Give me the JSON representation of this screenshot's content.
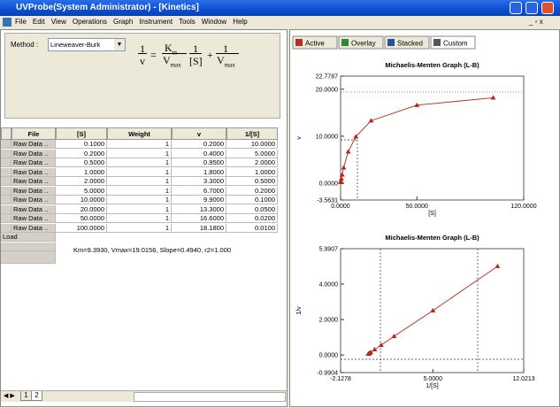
{
  "window": {
    "title": "UVProbe(System Administrator) - [Kinetics]",
    "menu": [
      "File",
      "Edit",
      "View",
      "Operations",
      "Graph",
      "Instrument",
      "Tools",
      "Window",
      "Help"
    ]
  },
  "method": {
    "label": "Method :",
    "selected": "Lineweaver-Burk"
  },
  "formula": {
    "one": "1",
    "v": "v",
    "K": "K",
    "m": "m",
    "V": "V",
    "max": "max",
    "S": "[S]",
    "plus": "+",
    "eq": "="
  },
  "table": {
    "headers": [
      "File",
      "[S]",
      "Weight",
      "v",
      "1/[S]"
    ],
    "rows": [
      [
        "Raw Data ..",
        "0.1000",
        "1",
        "0.2000",
        "10.0000"
      ],
      [
        "Raw Data ..",
        "0.2000",
        "1",
        "0.4000",
        "5.0000"
      ],
      [
        "Raw Data ..",
        "0.5000",
        "1",
        "0.9500",
        "2.0000"
      ],
      [
        "Raw Data ..",
        "1.0000",
        "1",
        "1.8000",
        "1.0000"
      ],
      [
        "Raw Data ..",
        "2.0000",
        "1",
        "3.3000",
        "0.5000"
      ],
      [
        "Raw Data ..",
        "5.0000",
        "1",
        "6.7000",
        "0.2000"
      ],
      [
        "Raw Data ..",
        "10.0000",
        "1",
        "9.9000",
        "0.1000"
      ],
      [
        "Raw Data ..",
        "20.0000",
        "1",
        "13.3000",
        "0.0500"
      ],
      [
        "Raw Data ..",
        "50.0000",
        "1",
        "16.6000",
        "0.0200"
      ],
      [
        "Raw Data ..",
        "100.0000",
        "1",
        "18.1800",
        "0.0100"
      ]
    ],
    "load": "Load",
    "summary": "Km=9.3930, Vmax=19.0156, Slope=0.4940, r2=1.000"
  },
  "tabs": [
    "Active",
    "Overlay",
    "Stacked",
    "Custom"
  ],
  "sheet_tabs": [
    "1",
    "2"
  ],
  "charts": [
    {
      "type": "scatter",
      "title": "Michaelis-Menten Graph (L-B)",
      "xlabel": "[S]",
      "ylabel": "v",
      "color": "#b02a1e",
      "x": [
        0.1,
        0.2,
        0.5,
        1,
        2,
        5,
        10,
        20,
        50,
        100
      ],
      "values": [
        0.2,
        0.4,
        0.95,
        1.8,
        3.3,
        6.7,
        9.9,
        13.3,
        16.6,
        18.18
      ],
      "xlim": [
        0,
        120
      ],
      "ylim": [
        -3.5631,
        22.7787
      ],
      "xticks": [
        {
          "value": 0,
          "label": "0.0000"
        },
        {
          "value": 50,
          "label": "50.0000"
        },
        {
          "value": 120,
          "label": "120.0000"
        }
      ],
      "yticks": [
        {
          "value": -3.5631,
          "label": "-3.5631"
        },
        {
          "value": 0,
          "label": "0.0000"
        },
        {
          "value": 10,
          "label": "10.0000"
        },
        {
          "value": 20,
          "label": "20.0000"
        },
        {
          "value": 22.7787,
          "label": "22.7787"
        }
      ]
    },
    {
      "type": "scatter",
      "title": "Michaelis-Menten Graph (L-B)",
      "xlabel": "1/[S]",
      "ylabel": "1/v",
      "color": "#b02a1e",
      "x": [
        10,
        5,
        2,
        1,
        0.5,
        0.2,
        0.1,
        0.05,
        0.02,
        0.01
      ],
      "values": [
        5,
        2.5,
        1.0526,
        0.5556,
        0.303,
        0.1493,
        0.101,
        0.0752,
        0.0602,
        0.055
      ],
      "xlim": [
        -2.1278,
        12.0213
      ],
      "ylim": [
        -0.9904,
        5.9907
      ],
      "xticks": [
        {
          "value": -2.1278,
          "label": "-2.1278"
        },
        {
          "value": 5,
          "label": "5.0000"
        },
        {
          "value": 12.0213,
          "label": "12.0213"
        }
      ],
      "yticks": [
        {
          "value": -0.9904,
          "label": "-0.9904"
        },
        {
          "value": 0,
          "label": "0.0000"
        },
        {
          "value": 2,
          "label": "2.0000"
        },
        {
          "value": 4,
          "label": "4.0000"
        },
        {
          "value": 5.9907,
          "label": "5.9907"
        }
      ]
    }
  ]
}
